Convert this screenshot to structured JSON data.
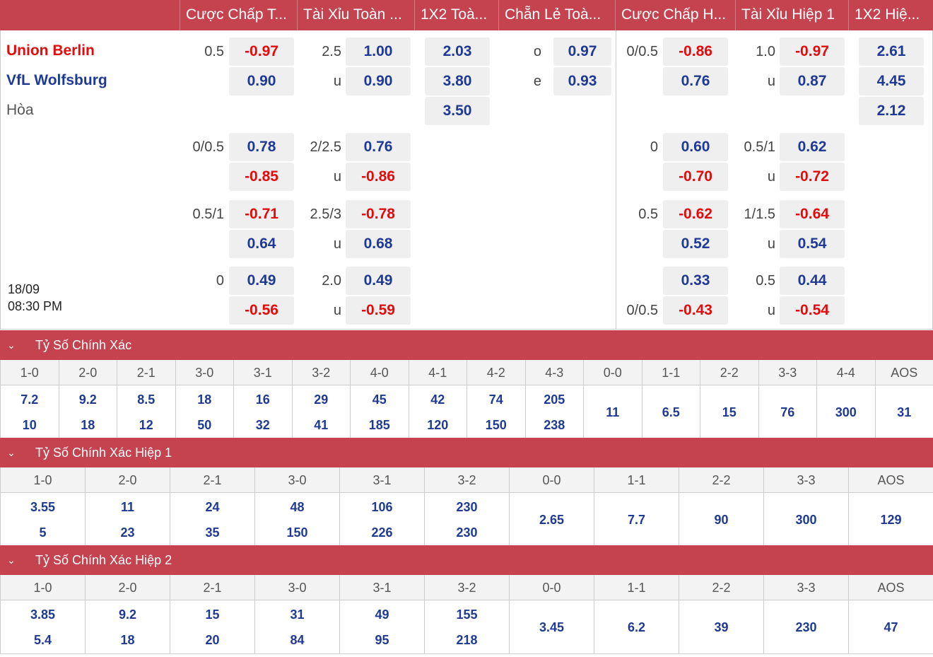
{
  "header": {
    "columns": [
      "Cược Chấp T...",
      "Tài Xỉu Toàn ...",
      "1X2 Toà...",
      "Chẵn Lẻ Toà...",
      "Cược Chấp H...",
      "Tài Xỉu Hiệp 1",
      "1X2 Hiệ..."
    ]
  },
  "match": {
    "home": "Union Berlin",
    "away": "VfL Wolfsburg",
    "draw": "Hòa",
    "date": "18/09",
    "time": "08:30 PM"
  },
  "colors": {
    "accent": "#c4434f",
    "positive": "#1f3a93",
    "negative": "#e30b0b"
  },
  "full_time": {
    "handicap": [
      {
        "line": "0.5",
        "home": "-0.97",
        "away": "0.90"
      },
      {
        "line": "0/0.5",
        "home": "0.78",
        "away": "-0.85"
      },
      {
        "line": "0.5/1",
        "home": "-0.71",
        "away": "0.64"
      },
      {
        "line": "0",
        "home": "0.49",
        "away": "-0.56"
      }
    ],
    "over_under": [
      {
        "line": "2.5",
        "over": "1.00",
        "u": "u",
        "under": "0.90"
      },
      {
        "line": "2/2.5",
        "over": "0.76",
        "u": "u",
        "under": "-0.86"
      },
      {
        "line": "2.5/3",
        "over": "-0.78",
        "u": "u",
        "under": "0.68"
      },
      {
        "line": "2.0",
        "over": "0.49",
        "u": "u",
        "under": "-0.59"
      }
    ],
    "x12": [
      "2.03",
      "3.80",
      "3.50"
    ],
    "odd_even": {
      "o_label": "o",
      "odd": "0.97",
      "e_label": "e",
      "even": "0.93"
    }
  },
  "first_half": {
    "handicap": [
      {
        "home_line": "0/0.5",
        "home": "-0.86",
        "away_line": "",
        "away": "0.76"
      },
      {
        "home_line": "0",
        "home": "0.60",
        "away_line": "",
        "away": "-0.70"
      },
      {
        "home_line": "0.5",
        "home": "-0.62",
        "away_line": "",
        "away": "0.52"
      },
      {
        "home_line": "",
        "home": "0.33",
        "away_line": "0/0.5",
        "away": "-0.43"
      }
    ],
    "over_under": [
      {
        "line": "1.0",
        "over": "-0.97",
        "u": "u",
        "under": "0.87"
      },
      {
        "line": "0.5/1",
        "over": "0.62",
        "u": "u",
        "under": "-0.72"
      },
      {
        "line": "1/1.5",
        "over": "-0.64",
        "u": "u",
        "under": "0.54"
      },
      {
        "line": "0.5",
        "over": "0.44",
        "u": "u",
        "under": "-0.54"
      }
    ],
    "x12": [
      "2.61",
      "4.45",
      "2.12"
    ]
  },
  "sections": [
    {
      "title": "Tỷ Số Chính Xác",
      "headers": [
        "1-0",
        "2-0",
        "2-1",
        "3-0",
        "3-1",
        "3-2",
        "4-0",
        "4-1",
        "4-2",
        "4-3",
        "0-0",
        "1-1",
        "2-2",
        "3-3",
        "4-4",
        "AOS"
      ],
      "values": [
        [
          "7.2",
          "10"
        ],
        [
          "9.2",
          "18"
        ],
        [
          "8.5",
          "12"
        ],
        [
          "18",
          "50"
        ],
        [
          "16",
          "32"
        ],
        [
          "29",
          "41"
        ],
        [
          "45",
          "185"
        ],
        [
          "42",
          "120"
        ],
        [
          "74",
          "150"
        ],
        [
          "205",
          "238"
        ],
        [
          "11"
        ],
        [
          "6.5"
        ],
        [
          "15"
        ],
        [
          "76"
        ],
        [
          "300"
        ],
        [
          "31"
        ]
      ]
    },
    {
      "title": "Tỷ Số Chính Xác Hiệp 1",
      "headers": [
        "1-0",
        "2-0",
        "2-1",
        "3-0",
        "3-1",
        "3-2",
        "0-0",
        "1-1",
        "2-2",
        "3-3",
        "AOS"
      ],
      "values": [
        [
          "3.55",
          "5"
        ],
        [
          "11",
          "23"
        ],
        [
          "24",
          "35"
        ],
        [
          "48",
          "150"
        ],
        [
          "106",
          "226"
        ],
        [
          "230",
          "230"
        ],
        [
          "2.65"
        ],
        [
          "7.7"
        ],
        [
          "90"
        ],
        [
          "300"
        ],
        [
          "129"
        ]
      ]
    },
    {
      "title": "Tỷ Số Chính Xác Hiệp 2",
      "headers": [
        "1-0",
        "2-0",
        "2-1",
        "3-0",
        "3-1",
        "3-2",
        "0-0",
        "1-1",
        "2-2",
        "3-3",
        "AOS"
      ],
      "values": [
        [
          "3.85",
          "5.4"
        ],
        [
          "9.2",
          "18"
        ],
        [
          "15",
          "20"
        ],
        [
          "31",
          "84"
        ],
        [
          "49",
          "95"
        ],
        [
          "155",
          "218"
        ],
        [
          "3.45"
        ],
        [
          "6.2"
        ],
        [
          "39"
        ],
        [
          "230"
        ],
        [
          "47"
        ]
      ]
    }
  ]
}
